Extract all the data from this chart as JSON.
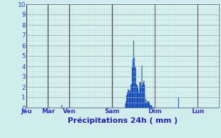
{
  "xlabel": "Précipitations 24h ( mm )",
  "ylim": [
    0,
    10
  ],
  "background_color": "#d0ecec",
  "plot_background": "#d8f2f0",
  "bar_color": "#1a55cc",
  "bar_edge_color": "#0a35aa",
  "grid_color_major": "#90b0b0",
  "grid_color_minor": "#b8d4d0",
  "tick_label_color": "#3333bb",
  "axis_label_color": "#2222aa",
  "day_labels": [
    "Jeu",
    "Mar",
    "Ven",
    "Sam",
    "Dim",
    "Lun"
  ],
  "day_positions": [
    0,
    32,
    64,
    128,
    192,
    256
  ],
  "n_bars": 288,
  "bar_values": [
    0,
    0,
    0,
    0,
    0,
    0,
    0,
    0,
    0,
    0,
    0,
    0,
    0,
    0,
    0,
    0,
    0,
    0,
    0,
    0,
    0,
    0,
    0,
    0,
    0,
    0,
    0,
    0,
    0,
    0,
    0,
    0,
    0,
    0,
    0,
    0,
    0,
    0,
    0,
    0,
    0,
    0,
    0,
    0,
    0,
    0,
    0,
    0,
    0,
    0,
    0,
    0,
    0.3,
    0,
    0,
    0,
    0,
    0,
    0,
    0,
    0,
    0,
    0,
    0,
    0,
    0,
    0,
    0,
    0,
    0,
    0,
    0,
    0,
    0,
    0,
    0,
    0,
    0,
    0,
    0,
    0,
    0,
    0,
    0,
    0,
    0,
    0,
    0,
    0,
    0,
    0,
    0,
    0,
    0,
    0,
    0,
    0,
    0,
    0,
    0,
    0,
    0,
    0,
    0,
    0,
    0,
    0,
    0,
    0,
    0,
    0,
    0,
    0,
    0,
    0,
    0,
    0,
    0,
    0,
    0,
    0,
    0,
    0,
    0,
    0,
    0,
    0,
    0,
    0,
    0,
    0,
    0,
    0,
    0,
    0,
    0,
    0,
    0,
    0,
    0,
    0,
    0,
    0,
    0,
    0,
    0,
    0,
    0,
    0.4,
    0.6,
    1.2,
    1.5,
    1.8,
    1.7,
    1.7,
    1.6,
    2.2,
    2.3,
    3.9,
    4.7,
    6.5,
    4.8,
    4.0,
    3.8,
    2.3,
    2.2,
    2.0,
    1.7,
    1.4,
    2.5,
    2.5,
    2.1,
    4.1,
    2.2,
    2.5,
    2.6,
    2.2,
    1.3,
    0.5,
    0.8,
    0.5,
    0.6,
    0.6,
    0.6,
    0.5,
    0.3,
    0.2,
    0.2,
    0.1,
    0.1,
    0,
    0,
    0,
    0,
    0,
    0,
    0,
    0,
    0,
    0,
    0,
    0,
    0,
    0,
    0,
    0,
    0,
    0,
    0,
    0,
    0,
    0,
    0,
    0,
    0,
    0,
    0,
    0,
    0,
    0,
    0,
    0,
    0,
    0,
    0,
    0,
    0,
    1.0,
    0,
    0,
    0,
    0,
    0,
    0,
    0,
    0,
    0,
    0,
    0,
    0,
    0,
    0,
    0
  ]
}
